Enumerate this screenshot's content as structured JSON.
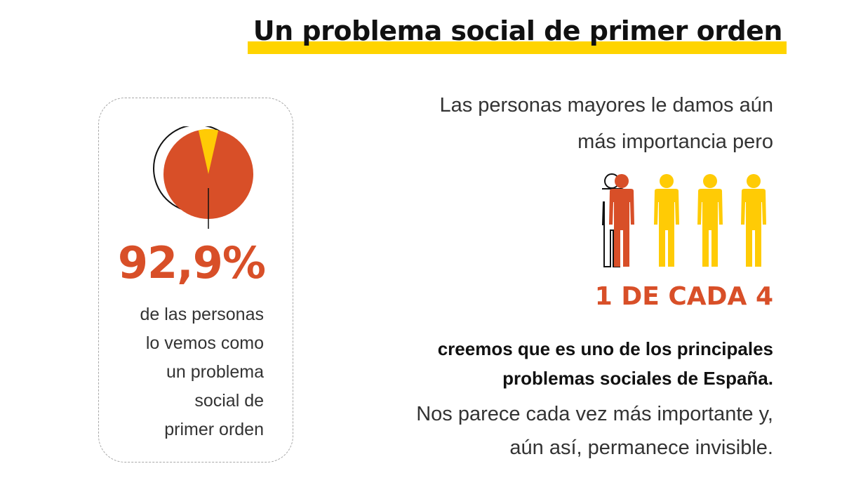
{
  "header": {
    "title": "Un problema social de primer orden",
    "highlight_color": "#ffd400"
  },
  "stat_card": {
    "percentage": "92,9%",
    "percentage_value": 92.9,
    "pie_icon": "pie-chart-icon",
    "description_lines": [
      "de las personas",
      "lo vemos como",
      "un problema",
      "social de",
      "primer orden"
    ],
    "colors": {
      "main": "#d84f28",
      "slice": "#ffcb05"
    }
  },
  "right_panel": {
    "intro_lines": [
      "Las personas mayores le damos aún",
      "más importancia pero"
    ],
    "people_icons": [
      "person-icon",
      "person-icon",
      "person-icon",
      "person-icon"
    ],
    "highlighted_count": 1,
    "total_count": 4,
    "ratio": "1 DE CADA 4",
    "bold_lines": [
      "creemos que es uno de los principales",
      "problemas sociales de España."
    ],
    "closing_lines": [
      "Nos parece cada vez más importante y,",
      "aún así, permanece invisible."
    ],
    "colors": {
      "highlight": "#d84f28",
      "others": "#ffcb05",
      "outline": "#111111"
    }
  }
}
